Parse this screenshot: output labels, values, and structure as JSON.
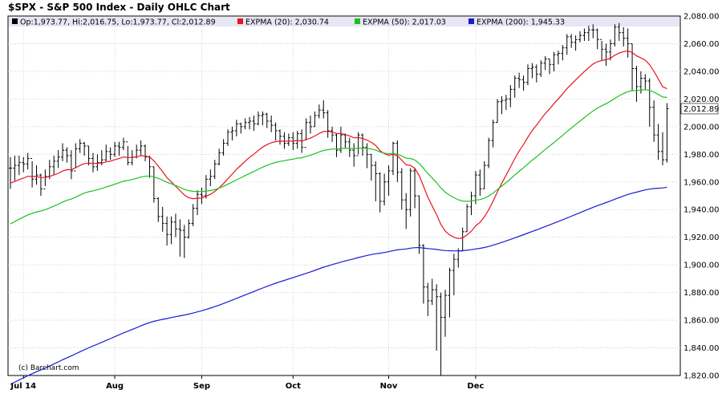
{
  "title": "$SPX - S&P 500 Index - Daily OHLC Chart",
  "colors": {
    "ohlc": "#000000",
    "legend_bg": "#e6e6f4",
    "ema20": "#e8141b",
    "ema50": "#1ec21e",
    "ema200": "#1a1ad6",
    "last_price_bg": "#ffffff"
  },
  "legend": {
    "ohlc": "Op:1,973.77, Hi:2,016.75, Lo:1,973.77, Cl:2,012.89",
    "ema20": "EXPMA (20): 2,030.74",
    "ema50": "EXPMA (50): 2,017.03",
    "ema200": "EXPMA (200): 1,945.33"
  },
  "last_price_label": "2,012.89",
  "copyright": "(c) Barchart.com",
  "chart_data": {
    "type": "ohlc",
    "title": "$SPX - S&P 500 Index - Daily OHLC Chart",
    "ylim": [
      1820,
      2080
    ],
    "yticks": [
      "1,820.00",
      "1,840.00",
      "1,860.00",
      "1,880.00",
      "1,900.00",
      "1,920.00",
      "1,940.00",
      "1,960.00",
      "1,980.00",
      "2,000.00",
      "2,020.00",
      "2,040.00",
      "2,060.00",
      "2,080.00"
    ],
    "months": [
      {
        "label": "Jul 14",
        "x": 3
      },
      {
        "label": "Aug",
        "x": 24
      },
      {
        "label": "Sep",
        "x": 44
      },
      {
        "label": "Oct",
        "x": 65
      },
      {
        "label": "Nov",
        "x": 87
      },
      {
        "label": "Dec",
        "x": 107
      }
    ],
    "close": [
      1970,
      1972,
      1974,
      1973,
      1977,
      1962,
      1965,
      1955,
      1964,
      1971,
      1975,
      1978,
      1983,
      1979,
      1968,
      1984,
      1988,
      1986,
      1977,
      1971,
      1974,
      1976,
      1982,
      1980,
      1986,
      1985,
      1989,
      1974,
      1978,
      1983,
      1986,
      1978,
      1971,
      1948,
      1935,
      1930,
      1922,
      1931,
      1926,
      1925,
      1920,
      1930,
      1941,
      1951,
      1950,
      1962,
      1964,
      1973,
      1981,
      1988,
      1996,
      1997,
      2002,
      2000,
      2003,
      2004,
      2002,
      2008,
      2009,
      2004,
      2001,
      1997,
      1993,
      1988,
      1992,
      1988,
      1995,
      1985,
      2003,
      2000,
      2008,
      2012,
      2010,
      1997,
      1994,
      1983,
      1994,
      1989,
      1983,
      1979,
      1994,
      1985,
      1980,
      1972,
      1966,
      1946,
      1960,
      1968,
      1988,
      1967,
      1947,
      1940,
      1968,
      1950,
      1914,
      1884,
      1874,
      1882,
      1877,
      1862,
      1878,
      1896,
      1904,
      1910,
      1924,
      1942,
      1950,
      1965,
      1955,
      1972,
      1990,
      2003,
      2018,
      2019,
      2020,
      2027,
      2035,
      2034,
      2032,
      2042,
      2043,
      2038,
      2046,
      2049,
      2045,
      2052,
      2053,
      2057,
      2065,
      2061,
      2063,
      2066,
      2068,
      2070,
      2070,
      2063,
      2056,
      2054,
      2060,
      2072,
      2068,
      2064,
      2060,
      2042,
      2029,
      2035,
      2033,
      2014,
      1994,
      1982,
      1976,
      2013
    ],
    "high": [
      1978,
      1979,
      1979,
      1978,
      1981,
      1975,
      1972,
      1966,
      1969,
      1976,
      1979,
      1983,
      1988,
      1985,
      1983,
      1988,
      1991,
      1989,
      1986,
      1981,
      1980,
      1983,
      1987,
      1985,
      1989,
      1989,
      1992,
      1986,
      1983,
      1987,
      1990,
      1987,
      1979,
      1971,
      1949,
      1942,
      1935,
      1935,
      1937,
      1933,
      1929,
      1933,
      1944,
      1954,
      1956,
      1965,
      1969,
      1976,
      1984,
      1991,
      1998,
      2000,
      2005,
      2003,
      2006,
      2007,
      2008,
      2011,
      2011,
      2010,
      2008,
      2003,
      1998,
      1996,
      1995,
      1996,
      1997,
      1998,
      2006,
      2008,
      2011,
      2016,
      2019,
      2012,
      2000,
      1995,
      2000,
      1995,
      1992,
      1988,
      1996,
      1995,
      1988,
      1980,
      1975,
      1967,
      1966,
      1972,
      1989,
      1990,
      1970,
      1952,
      1970,
      1970,
      1950,
      1915,
      1887,
      1890,
      1886,
      1880,
      1882,
      1898,
      1908,
      1912,
      1927,
      1944,
      1953,
      1968,
      1969,
      1975,
      1992,
      2005,
      2020,
      2022,
      2023,
      2030,
      2037,
      2039,
      2037,
      2045,
      2046,
      2045,
      2048,
      2051,
      2049,
      2054,
      2055,
      2059,
      2067,
      2067,
      2066,
      2069,
      2071,
      2073,
      2074,
      2071,
      2062,
      2060,
      2063,
      2074,
      2075,
      2072,
      2071,
      2060,
      2044,
      2040,
      2038,
      2035,
      2019,
      2002,
      1996,
      2017
    ],
    "low": [
      1955,
      1961,
      1965,
      1967,
      1969,
      1956,
      1958,
      1950,
      1957,
      1962,
      1965,
      1970,
      1975,
      1974,
      1962,
      1970,
      1981,
      1979,
      1972,
      1967,
      1968,
      1972,
      1975,
      1976,
      1978,
      1979,
      1983,
      1972,
      1972,
      1977,
      1979,
      1975,
      1963,
      1945,
      1931,
      1924,
      1914,
      1915,
      1920,
      1906,
      1905,
      1919,
      1928,
      1936,
      1944,
      1948,
      1957,
      1962,
      1972,
      1979,
      1986,
      1990,
      1993,
      1995,
      1998,
      1998,
      1997,
      2001,
      2001,
      1999,
      1996,
      1990,
      1987,
      1984,
      1986,
      1983,
      1984,
      1981,
      1990,
      1995,
      2000,
      2006,
      2006,
      1992,
      1989,
      1978,
      1981,
      1984,
      1978,
      1971,
      1980,
      1979,
      1970,
      1961,
      1946,
      1938,
      1943,
      1950,
      1965,
      1960,
      1940,
      1926,
      1935,
      1941,
      1908,
      1872,
      1863,
      1871,
      1838,
      1820,
      1848,
      1862,
      1878,
      1898,
      1910,
      1924,
      1936,
      1944,
      1950,
      1955,
      1970,
      1985,
      2003,
      2009,
      2012,
      2014,
      2021,
      2028,
      2026,
      2030,
      2035,
      2032,
      2036,
      2041,
      2038,
      2040,
      2045,
      2048,
      2052,
      2057,
      2055,
      2061,
      2062,
      2062,
      2064,
      2056,
      2048,
      2044,
      2048,
      2058,
      2062,
      2058,
      2050,
      2026,
      2018,
      2024,
      2027,
      2000,
      1989,
      1976,
      1972,
      1974
    ]
  }
}
